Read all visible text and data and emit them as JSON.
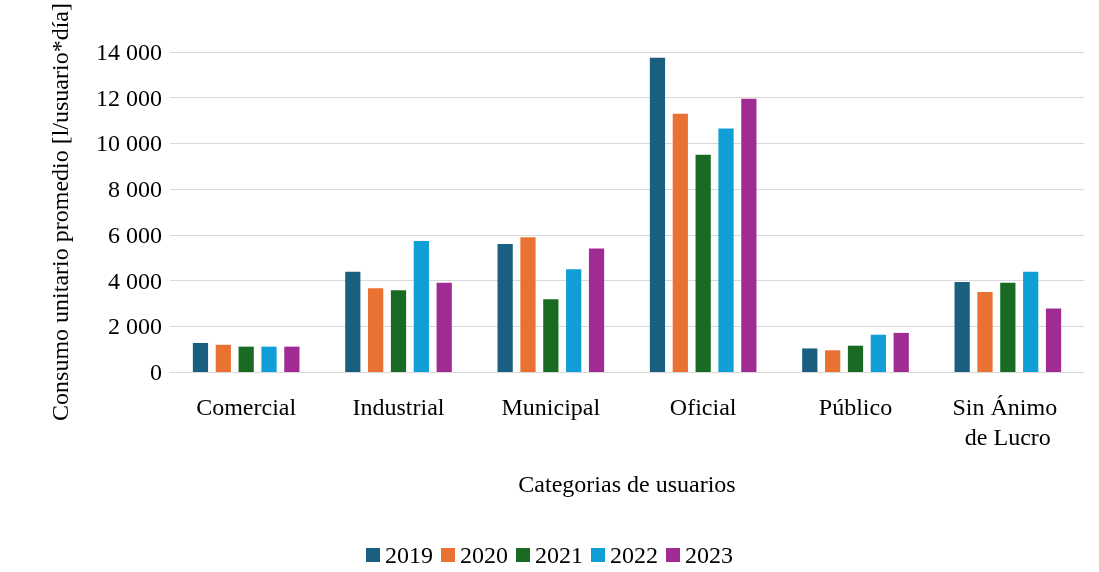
{
  "chart_data": {
    "type": "bar",
    "xlabel": "Categorias de usuarios",
    "ylabel": "Consumo unitario promedio [l/usuario*día]",
    "categories": [
      "Comercial",
      "Industrial",
      "Municipal",
      "Oficial",
      "Público",
      "Sin Ánimo de Lucro"
    ],
    "series": [
      {
        "name": "2019",
        "color": "#1a5e80",
        "values": [
          1270,
          4380,
          5600,
          13750,
          1030,
          3940
        ]
      },
      {
        "name": "2020",
        "color": "#e97132",
        "values": [
          1190,
          3660,
          5890,
          11300,
          950,
          3500
        ]
      },
      {
        "name": "2021",
        "color": "#196b24",
        "values": [
          1110,
          3580,
          3180,
          9500,
          1150,
          3900
        ]
      },
      {
        "name": "2022",
        "color": "#0f9ed5",
        "values": [
          1110,
          5730,
          4490,
          10650,
          1630,
          4380
        ]
      },
      {
        "name": "2023",
        "color": "#a02b93",
        "values": [
          1110,
          3900,
          5400,
          11950,
          1710,
          2780
        ]
      }
    ],
    "ylim": [
      0,
      14000
    ],
    "yticks": [
      0,
      {
        "value": 2000,
        "label": "2 000"
      },
      {
        "value": 4000,
        "label": "4 000"
      },
      {
        "value": 6000,
        "label": "6 000"
      },
      {
        "value": 8000,
        "label": "8 000"
      },
      {
        "value": 10000,
        "label": "10 000"
      },
      {
        "value": 12000,
        "label": "12 000"
      },
      {
        "value": 14000,
        "label": "14 000"
      }
    ],
    "grid": "y",
    "legend": "bottom"
  }
}
